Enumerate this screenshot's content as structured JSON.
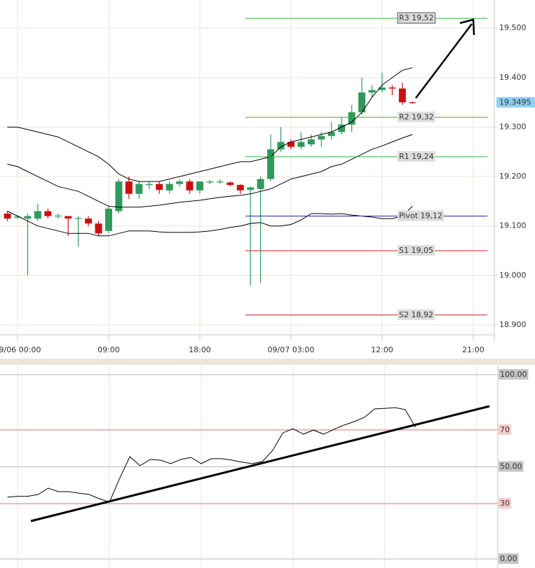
{
  "chart_data": [
    {
      "type": "candlestick",
      "x": [
        -1,
        0,
        1,
        2,
        3,
        4,
        5,
        6,
        7,
        8,
        9,
        10,
        11,
        12,
        13,
        14,
        15,
        16,
        17,
        18,
        19,
        20,
        21,
        22,
        23,
        24,
        25,
        26,
        27,
        28,
        29,
        30,
        31,
        32,
        33,
        34,
        35,
        36,
        37,
        38,
        39
      ],
      "open": [
        19.125,
        19.117,
        19.115,
        19.115,
        19.13,
        19.12,
        19.12,
        19.115,
        19.115,
        19.105,
        19.09,
        19.13,
        19.19,
        19.165,
        19.183,
        19.185,
        19.172,
        19.185,
        19.19,
        19.172,
        19.188,
        19.189,
        19.188,
        19.183,
        19.173,
        19.175,
        19.195,
        19.255,
        19.27,
        19.26,
        19.265,
        19.275,
        19.282,
        19.29,
        19.305,
        19.33,
        19.37,
        19.375,
        19.38,
        19.378,
        19.35
      ],
      "high": [
        19.13,
        19.122,
        19.125,
        19.145,
        19.135,
        19.125,
        19.12,
        19.12,
        19.12,
        19.11,
        19.14,
        19.195,
        19.2,
        19.19,
        19.19,
        19.19,
        19.19,
        19.195,
        19.195,
        19.19,
        19.193,
        19.195,
        19.19,
        19.185,
        19.18,
        19.2,
        19.285,
        19.3,
        19.275,
        19.29,
        19.285,
        19.29,
        19.31,
        19.32,
        19.345,
        19.4,
        19.385,
        19.41,
        19.385,
        19.39,
        19.352
      ],
      "low": [
        19.11,
        19.114,
        19.0,
        19.11,
        19.115,
        19.115,
        19.08,
        19.058,
        19.1,
        19.08,
        19.085,
        19.125,
        19.155,
        19.155,
        19.175,
        19.165,
        19.165,
        19.18,
        19.165,
        19.165,
        19.185,
        19.185,
        19.18,
        19.165,
        18.98,
        18.985,
        19.19,
        19.25,
        19.255,
        19.255,
        19.26,
        19.26,
        19.275,
        19.285,
        19.29,
        19.325,
        19.36,
        19.37,
        19.365,
        19.345,
        19.347
      ],
      "close": [
        19.115,
        19.119,
        19.12,
        19.13,
        19.12,
        19.121,
        19.115,
        19.116,
        19.105,
        19.085,
        19.135,
        19.19,
        19.165,
        19.185,
        19.185,
        19.173,
        19.185,
        19.19,
        19.172,
        19.19,
        19.19,
        19.19,
        19.183,
        19.172,
        19.178,
        19.195,
        19.255,
        19.27,
        19.26,
        19.27,
        19.275,
        19.282,
        19.29,
        19.305,
        19.33,
        19.37,
        19.375,
        19.38,
        19.378,
        19.35,
        19.3495
      ],
      "up_color": "#2f9a5c",
      "down_color": "#cc1010",
      "overlays": [
        {
          "color": "#000000",
          "values": [
            19.3,
            19.3,
            19.295,
            19.29,
            19.285,
            19.28,
            19.27,
            19.26,
            19.25,
            19.24,
            19.225,
            19.205,
            19.195,
            19.19,
            19.19,
            19.19,
            19.195,
            19.2,
            19.205,
            19.21,
            19.215,
            19.22,
            19.225,
            19.23,
            19.23,
            19.235,
            19.24,
            19.26,
            19.27,
            19.275,
            19.28,
            19.285,
            19.29,
            19.3,
            19.31,
            19.33,
            19.36,
            19.385,
            19.4,
            19.415,
            19.42
          ]
        },
        {
          "color": "#000000",
          "values": [
            19.225,
            19.22,
            19.21,
            19.2,
            19.19,
            19.18,
            19.175,
            19.17,
            19.16,
            19.15,
            19.14,
            19.138,
            19.138,
            19.138,
            19.14,
            19.142,
            19.145,
            19.148,
            19.15,
            19.152,
            19.155,
            19.158,
            19.16,
            19.162,
            19.165,
            19.17,
            19.175,
            19.185,
            19.195,
            19.2,
            19.205,
            19.21,
            19.22,
            19.225,
            19.235,
            19.245,
            19.255,
            19.262,
            19.27,
            19.278,
            19.285
          ]
        },
        {
          "color": "#000000",
          "values": [
            19.13,
            19.12,
            19.11,
            19.1,
            19.095,
            19.09,
            19.085,
            19.085,
            19.085,
            19.08,
            19.08,
            19.085,
            19.09,
            19.09,
            19.09,
            19.088,
            19.087,
            19.087,
            19.087,
            19.088,
            19.09,
            19.093,
            19.097,
            19.1,
            19.105,
            19.107,
            19.1,
            19.1,
            19.103,
            19.112,
            19.125,
            19.125,
            19.124,
            19.125,
            19.122,
            19.12,
            19.118,
            19.115,
            19.115,
            19.12,
            19.14
          ]
        }
      ],
      "levels": [
        {
          "label": "R3 19,52",
          "value": 19.52,
          "color": "#3cb03c"
        },
        {
          "label": "R2 19,32",
          "value": 19.32,
          "color": "#3cb03c"
        },
        {
          "label": "R1 19,24",
          "value": 19.24,
          "color": "#3cb03c"
        },
        {
          "label": "Pivot 19,12",
          "value": 19.12,
          "color": "#1c2f9a"
        },
        {
          "label": "S1 19,05",
          "value": 19.05,
          "color": "#cc2020"
        },
        {
          "label": "S2 18,92",
          "value": 18.92,
          "color": "#cc2020"
        }
      ],
      "levels_from": 22.5,
      "levels_to": 46.4,
      "last_price": 19.3495,
      "last_price_color": "#8fd0f2",
      "ylim": [
        18.88,
        19.557
      ],
      "yticks": [
        {
          "value": 18.9,
          "label": "18.900"
        },
        {
          "value": 19.0,
          "label": "19.000"
        },
        {
          "value": 19.1,
          "label": "19.100"
        },
        {
          "value": 19.2,
          "label": "19.200"
        },
        {
          "value": 19.3,
          "label": "19.300"
        },
        {
          "value": 19.4,
          "label": "19.400"
        },
        {
          "value": 19.5,
          "label": "19.500"
        }
      ],
      "xlim": [
        -1.73,
        47.08
      ],
      "xticks": [
        {
          "value": 0,
          "label": "09/06 00:00"
        },
        {
          "value": 9,
          "label": "09:00"
        },
        {
          "value": 18,
          "label": "18:00"
        },
        {
          "value": 27,
          "label": "09/07 03:00"
        },
        {
          "value": 36,
          "label": "12:00"
        },
        {
          "value": 45,
          "label": "21:00"
        }
      ],
      "grid": true
    },
    {
      "type": "line",
      "x": [
        -1,
        0,
        1,
        2,
        3,
        4,
        5,
        6,
        7,
        8,
        9,
        10,
        11,
        12,
        13,
        14,
        15,
        16,
        17,
        18,
        19,
        20,
        21,
        22,
        23,
        24,
        25,
        26,
        27,
        28,
        29,
        30,
        31,
        32,
        33,
        34,
        35,
        36,
        37,
        38,
        39
      ],
      "series": [
        {
          "color": "#000000",
          "values": [
            33.5,
            34,
            34,
            35,
            38.4,
            36.5,
            36.5,
            35.7,
            35,
            32.7,
            30.8,
            43.7,
            55.5,
            50.6,
            54,
            53.6,
            51.7,
            54,
            55.1,
            51.7,
            54.4,
            54.4,
            53.6,
            52.5,
            51.7,
            52.9,
            58.9,
            68.4,
            70.7,
            67.7,
            69.9,
            67.7,
            70.3,
            72.6,
            74.5,
            76.8,
            81.4,
            81.7,
            82.1,
            81,
            71.5
          ]
        }
      ],
      "ylim": [
        -4.9,
        104.9
      ],
      "yticks": [
        {
          "value": 0,
          "label": "0.00"
        },
        30,
        {
          "value": 50,
          "label": "50.00"
        },
        70,
        {
          "value": 100,
          "label": "100.00"
        }
      ],
      "level_color": "#e07070",
      "xlim": [
        -1.73,
        47.08
      ],
      "grid": true
    }
  ]
}
